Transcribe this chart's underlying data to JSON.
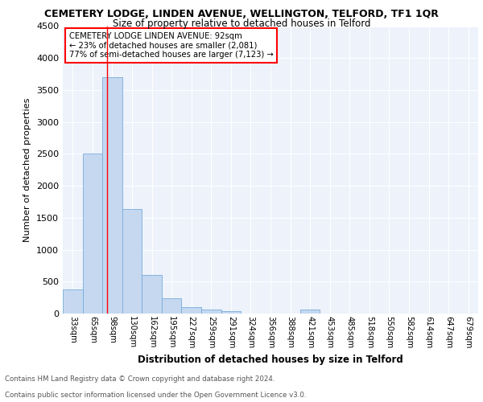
{
  "title": "CEMETERY LODGE, LINDEN AVENUE, WELLINGTON, TELFORD, TF1 1QR",
  "subtitle": "Size of property relative to detached houses in Telford",
  "xlabel": "Distribution of detached houses by size in Telford",
  "ylabel": "Number of detached properties",
  "bar_labels": [
    "33sqm",
    "65sqm",
    "98sqm",
    "130sqm",
    "162sqm",
    "195sqm",
    "227sqm",
    "259sqm",
    "291sqm",
    "324sqm",
    "356sqm",
    "388sqm",
    "421sqm",
    "453sqm",
    "485sqm",
    "518sqm",
    "550sqm",
    "582sqm",
    "614sqm",
    "647sqm",
    "679sqm"
  ],
  "bar_values": [
    380,
    2500,
    3700,
    1640,
    600,
    240,
    100,
    60,
    40,
    0,
    0,
    0,
    60,
    0,
    0,
    0,
    0,
    0,
    0,
    0,
    0
  ],
  "bar_color": "#c5d8f0",
  "bar_edge_color": "#7aabdb",
  "ylim": [
    0,
    4500
  ],
  "yticks": [
    0,
    500,
    1000,
    1500,
    2000,
    2500,
    3000,
    3500,
    4000,
    4500
  ],
  "red_line_x": 1.72,
  "annotation_line1": "CEMETERY LODGE LINDEN AVENUE: 92sqm",
  "annotation_line2": "← 23% of detached houses are smaller (2,081)",
  "annotation_line3": "77% of semi-detached houses are larger (7,123) →",
  "footnote1": "Contains HM Land Registry data © Crown copyright and database right 2024.",
  "footnote2": "Contains public sector information licensed under the Open Government Licence v3.0.",
  "background_color": "#edf2fb",
  "grid_color": "#ffffff"
}
